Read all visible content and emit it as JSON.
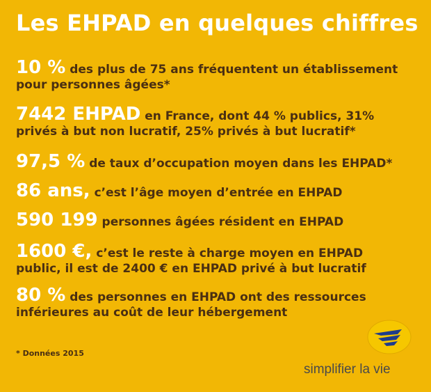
{
  "title": "Les EHPAD en quelques chiffres",
  "facts": [
    {
      "big": "10 %",
      "line1": "des plus de 75 ans fréquentent un établissement",
      "line2": "pour personnes âgées*"
    },
    {
      "big": "7442 EHPAD",
      "line1": "en France, dont 44 % publics, 31%",
      "line2": "privés à but non lucratif, 25% privés à but lucratif*"
    },
    {
      "big": "97,5 %",
      "line1": "de taux d’occupation moyen dans les EHPAD*"
    },
    {
      "big": "86 ans,",
      "line1": "c’est l’âge moyen d’entrée en EHPAD"
    },
    {
      "big": "590 199",
      "line1": "personnes âgées résident en EHPAD"
    },
    {
      "big": "1600 €,",
      "line1": "c’est le reste à charge moyen en EHPAD",
      "line2": "public, il est de 2400 € en EHPAD privé à but lucratif"
    },
    {
      "big": "80 %",
      "line1": "des personnes en EHPAD ont des ressources",
      "line2": "inférieures au coût de leur hébergement"
    }
  ],
  "footnote": "* Données 2015",
  "slogan": "simplifier la vie",
  "colors": {
    "background": "#F2B705",
    "highlight": "#FFFFFF",
    "text": "#4A2F12",
    "logo_blue": "#1E3C8C"
  }
}
